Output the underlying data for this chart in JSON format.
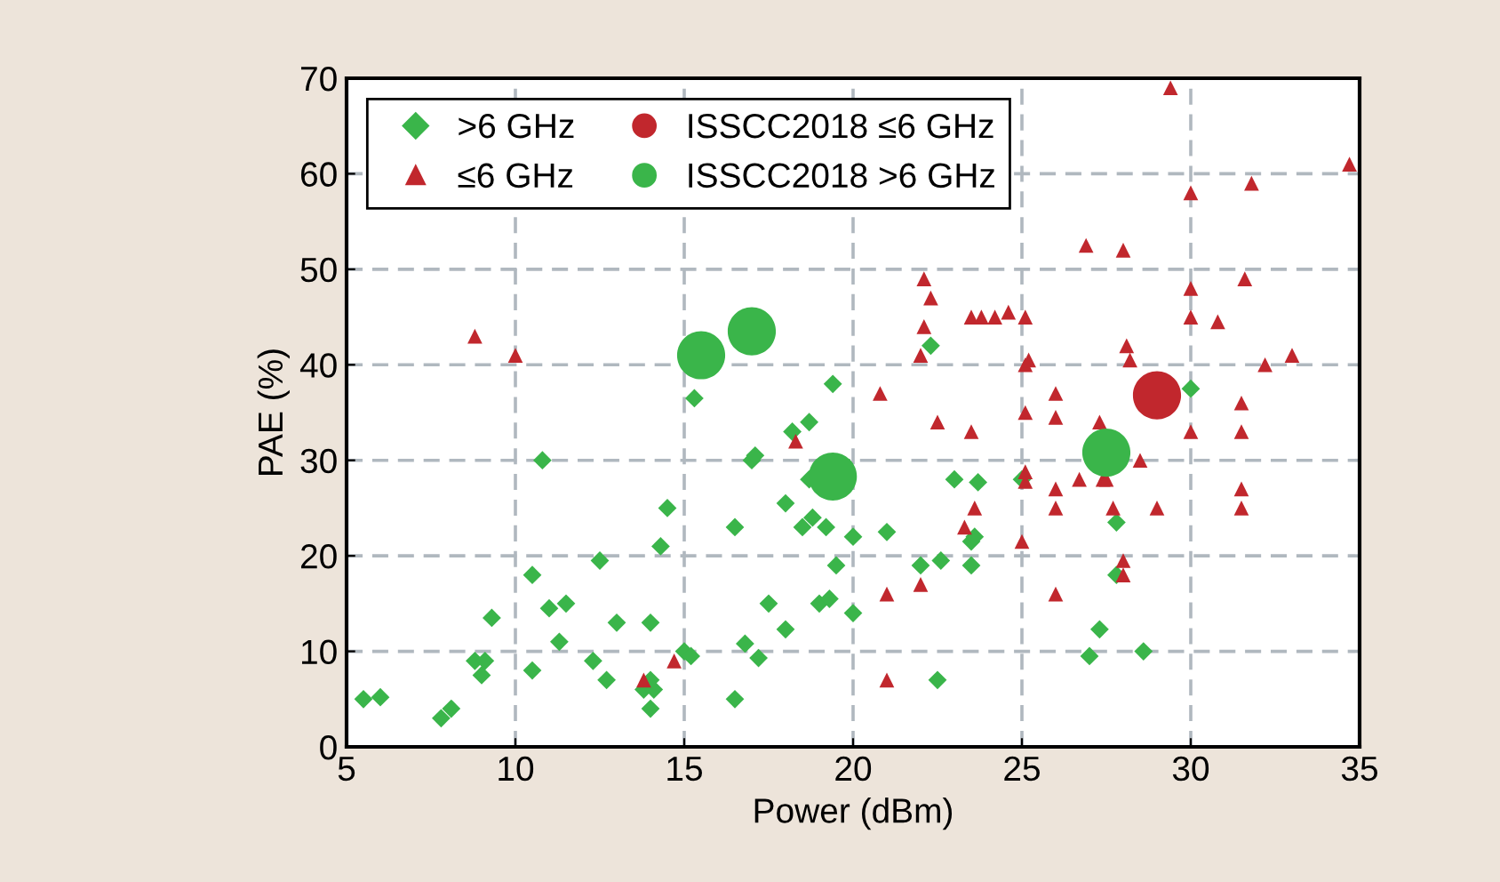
{
  "chart_data": {
    "type": "scatter",
    "xlabel": "Power (dBm)",
    "ylabel": "PAE (%)",
    "xlim": [
      5,
      35
    ],
    "ylim": [
      0,
      70
    ],
    "xticks": [
      5,
      10,
      15,
      20,
      25,
      30,
      35
    ],
    "yticks": [
      0,
      10,
      20,
      30,
      40,
      50,
      60,
      70
    ],
    "grid": true,
    "legend": "top left",
    "series": [
      {
        "name": ">6 GHz",
        "color": "#3ab54a",
        "marker": "diamond",
        "x": [
          5.5,
          6,
          7.8,
          8.1,
          8.8,
          9,
          9.1,
          9.3,
          10.5,
          10.5,
          10.8,
          11,
          11.3,
          11.5,
          12.3,
          12.5,
          12.7,
          13,
          13.8,
          14,
          14,
          14,
          14.1,
          14.3,
          14.5,
          15,
          15.2,
          15.3,
          16.5,
          16.5,
          16.8,
          17,
          17.1,
          17.2,
          17.5,
          18,
          18,
          18.2,
          18.5,
          18.7,
          18.7,
          18.8,
          19,
          19.2,
          19.3,
          19.4,
          19.5,
          20,
          20,
          21,
          22,
          22.3,
          22.5,
          22.6,
          23,
          23.5,
          23.7,
          23.6,
          23.5,
          25,
          27,
          27.3,
          27.8,
          27.8,
          28.6,
          30
        ],
        "values": [
          5,
          5.2,
          3,
          4,
          9,
          7.5,
          9,
          13.5,
          8,
          18,
          30,
          14.5,
          11,
          15,
          9,
          19.5,
          7,
          13,
          6,
          13,
          7,
          4,
          6,
          21,
          25,
          10,
          9.5,
          36.5,
          23,
          5,
          10.8,
          30,
          30.5,
          9.3,
          15,
          12.3,
          25.5,
          33,
          23,
          28,
          34,
          24,
          15,
          23,
          15.5,
          38,
          19,
          14,
          22,
          22.5,
          19,
          42,
          7,
          19.5,
          28,
          21.5,
          27.7,
          22,
          19,
          28,
          9.5,
          12.3,
          23.5,
          18,
          10,
          37.5
        ]
      },
      {
        "name": "≤6 GHz",
        "color": "#c1272d",
        "marker": "triangle",
        "x": [
          8.8,
          10,
          13.8,
          14.7,
          18.3,
          20.8,
          21,
          21,
          22,
          22,
          22.1,
          22.1,
          22.3,
          22.5,
          23.3,
          23.5,
          23.5,
          23.6,
          23.8,
          24.2,
          24.6,
          25.1,
          25.1,
          25.2,
          25,
          25.1,
          25.1,
          25.1,
          26,
          26,
          26,
          26,
          26,
          26.7,
          26.9,
          27.3,
          27.4,
          28,
          28.1,
          28.2,
          28.5,
          29,
          29.4,
          30,
          30,
          30,
          30,
          30.8,
          31.5,
          31.6,
          31.8,
          31.5,
          31.5,
          31.5,
          32.2,
          33,
          34.7,
          27.7,
          28,
          28,
          27.5
        ],
        "values": [
          43,
          41,
          7,
          9,
          32,
          37,
          7,
          16,
          17,
          41,
          44,
          49,
          47,
          34,
          23,
          45,
          33,
          25,
          45,
          45,
          45.5,
          45,
          40,
          40.5,
          21.5,
          35,
          27.8,
          28.8,
          37,
          34.5,
          27,
          25,
          16,
          28,
          52.5,
          34,
          28,
          52,
          42,
          40.5,
          30,
          25,
          69,
          58,
          48,
          45,
          33,
          44.5,
          33,
          49,
          59,
          36,
          27,
          25,
          40,
          41,
          61,
          25,
          19.5,
          18,
          28
        ]
      },
      {
        "name": "ISSCC2018 ≤6 GHz",
        "color": "#c1272d",
        "marker": "circle",
        "x": [
          29
        ],
        "values": [
          36.8
        ]
      },
      {
        "name": "ISSCC2018 >6 GHz",
        "color": "#3ab54a",
        "marker": "circle",
        "x": [
          15.5,
          17,
          19.4,
          27.5
        ],
        "values": [
          41,
          43.5,
          28.3,
          30.8
        ]
      }
    ]
  }
}
